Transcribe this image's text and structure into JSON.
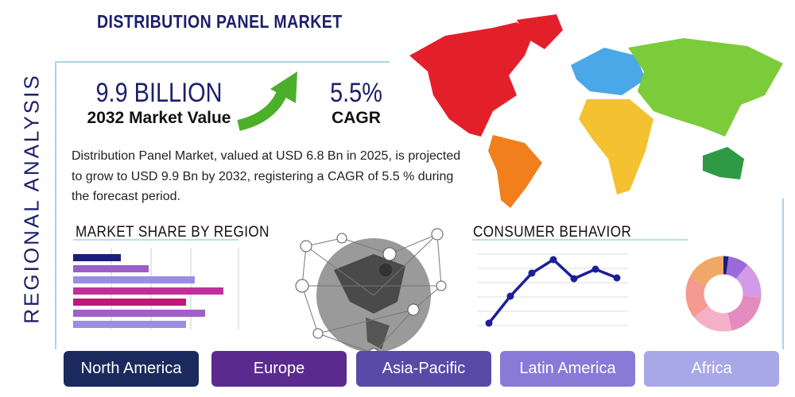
{
  "header": {
    "title": "DISTRIBUTION PANEL MARKET",
    "side_title": "REGIONAL ANALYSIS"
  },
  "stats": [
    {
      "value": "9.9 BILLION",
      "label": "2032 Market Value"
    },
    {
      "value": "5.5%",
      "label": "CAGR"
    }
  ],
  "description": "Distribution Panel Market, valued at USD 6.8 Bn in 2025, is projected to grow to USD 9.9 Bn by 2032, registering a CAGR of 5.5 % during the forecast period.",
  "sections": {
    "market_share": "MARKET SHARE BY REGION",
    "consumer_behavior": "CONSUMER BEHAVIOR"
  },
  "regions": [
    "North America",
    "Europe",
    "Asia-Pacific",
    "Latin America",
    "Africa"
  ]
}
